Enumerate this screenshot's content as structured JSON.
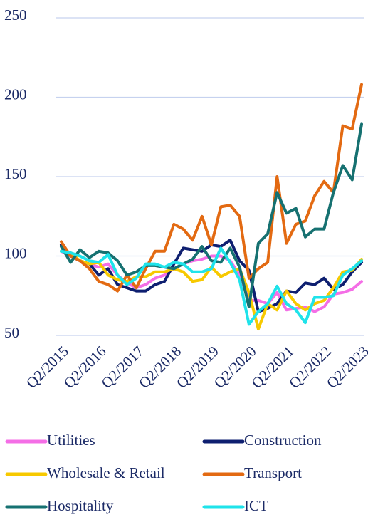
{
  "chart_data": {
    "type": "line",
    "categories": [
      "Q2/2015",
      null,
      null,
      null,
      "Q2/2016",
      null,
      null,
      null,
      "Q2/2017",
      null,
      null,
      null,
      "Q2/2018",
      null,
      null,
      null,
      "Q2/2019",
      null,
      null,
      null,
      "Q2/2020",
      null,
      null,
      null,
      "Q2/2021",
      null,
      null,
      null,
      "Q2/2022",
      null,
      null,
      null,
      "Q2/2023"
    ],
    "ylim": [
      50,
      250
    ],
    "yticks": [
      50,
      100,
      150,
      200,
      250
    ],
    "grid": true,
    "series": [
      {
        "name": "Utilities",
        "color": "#f46ee6",
        "values": [
          103,
          100,
          97,
          95,
          93,
          95,
          88,
          83,
          80,
          82,
          86,
          88,
          92,
          95,
          97,
          98,
          100,
          100,
          97,
          88,
          72,
          72,
          70,
          77,
          66,
          67,
          68,
          65,
          68,
          76,
          77,
          79,
          84
        ]
      },
      {
        "name": "Construction",
        "color": "#0e1f70",
        "values": [
          107,
          100,
          97,
          95,
          88,
          92,
          82,
          80,
          78,
          78,
          82,
          84,
          95,
          105,
          104,
          103,
          107,
          106,
          110,
          97,
          91,
          65,
          67,
          70,
          78,
          77,
          83,
          82,
          86,
          79,
          82,
          90,
          96
        ]
      },
      {
        "name": "Wholesale & Retail",
        "color": "#f7c900",
        "values": [
          103,
          102,
          97,
          95,
          96,
          88,
          85,
          84,
          87,
          87,
          90,
          90,
          92,
          90,
          84,
          85,
          93,
          87,
          90,
          92,
          77,
          54,
          70,
          66,
          78,
          70,
          66,
          70,
          72,
          80,
          90,
          91,
          98
        ]
      },
      {
        "name": "Transport",
        "color": "#e36a12",
        "values": [
          109,
          100,
          97,
          92,
          84,
          82,
          78,
          88,
          80,
          92,
          103,
          103,
          120,
          117,
          110,
          125,
          107,
          131,
          132,
          125,
          86,
          92,
          96,
          150,
          108,
          120,
          122,
          138,
          147,
          140,
          182,
          180,
          208
        ]
      },
      {
        "name": "Hospitality",
        "color": "#167171",
        "values": [
          106,
          96,
          104,
          99,
          103,
          102,
          97,
          88,
          90,
          94,
          94,
          93,
          92,
          95,
          98,
          106,
          97,
          96,
          105,
          93,
          68,
          108,
          114,
          140,
          127,
          130,
          112,
          117,
          117,
          140,
          157,
          148,
          183
        ]
      },
      {
        "name": "ICT",
        "color": "#1fe3ea",
        "values": [
          103,
          102,
          100,
          97,
          96,
          101,
          88,
          82,
          86,
          95,
          95,
          93,
          96,
          95,
          90,
          90,
          92,
          105,
          96,
          85,
          57,
          65,
          70,
          81,
          70,
          66,
          58,
          74,
          74,
          75,
          88,
          92,
          97
        ]
      }
    ]
  }
}
